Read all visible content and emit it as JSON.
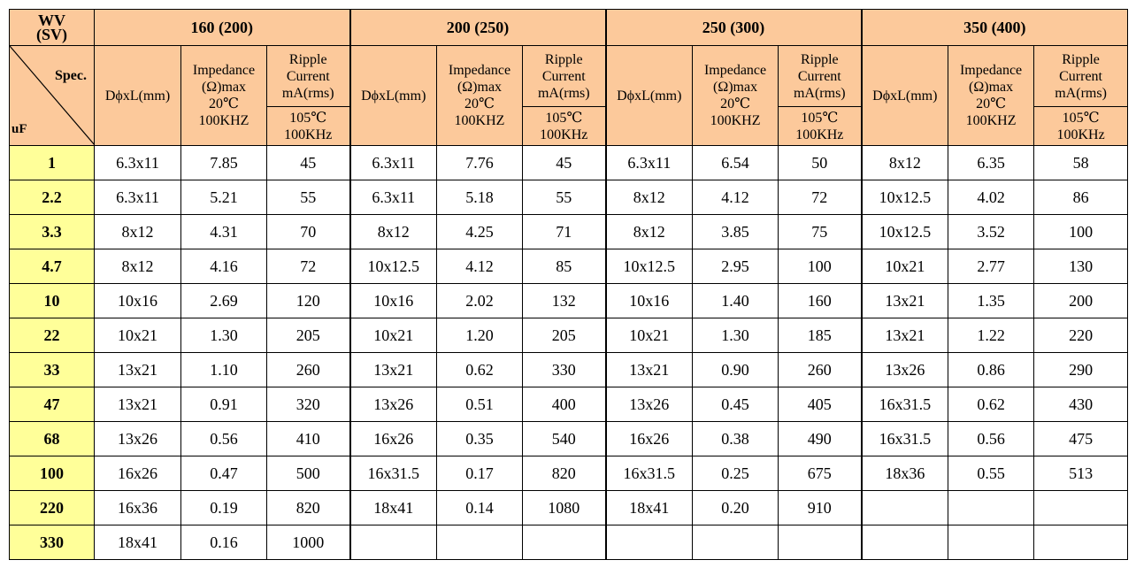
{
  "header": {
    "wv": "WV",
    "sv": "(SV)",
    "spec": "Spec.",
    "uf": "uF",
    "voltage_groups": [
      "160 (200)",
      "200 (250)",
      "250 (300)",
      "350 (400)"
    ],
    "dim_label": "DϕxL(mm)",
    "imp_line1": "Impedance",
    "imp_line2": "(Ω)max",
    "imp_line3": "20℃",
    "imp_line4": "100KHZ",
    "rip_line1": "Ripple",
    "rip_line2": "Current",
    "rip_line3": "mA(rms)",
    "rip_line4": "105℃",
    "rip_line5": "100KHz"
  },
  "rows": [
    {
      "uf": "1",
      "cells": [
        "6.3x11",
        "7.85",
        "45",
        "6.3x11",
        "7.76",
        "45",
        "6.3x11",
        "6.54",
        "50",
        "8x12",
        "6.35",
        "58"
      ]
    },
    {
      "uf": "2.2",
      "cells": [
        "6.3x11",
        "5.21",
        "55",
        "6.3x11",
        "5.18",
        "55",
        "8x12",
        "4.12",
        "72",
        "10x12.5",
        "4.02",
        "86"
      ]
    },
    {
      "uf": "3.3",
      "cells": [
        "8x12",
        "4.31",
        "70",
        "8x12",
        "4.25",
        "71",
        "8x12",
        "3.85",
        "75",
        "10x12.5",
        "3.52",
        "100"
      ]
    },
    {
      "uf": "4.7",
      "cells": [
        "8x12",
        "4.16",
        "72",
        "10x12.5",
        "4.12",
        "85",
        "10x12.5",
        "2.95",
        "100",
        "10x21",
        "2.77",
        "130"
      ]
    },
    {
      "uf": "10",
      "cells": [
        "10x16",
        "2.69",
        "120",
        "10x16",
        "2.02",
        "132",
        "10x16",
        "1.40",
        "160",
        "13x21",
        "1.35",
        "200"
      ]
    },
    {
      "uf": "22",
      "cells": [
        "10x21",
        "1.30",
        "205",
        "10x21",
        "1.20",
        "205",
        "10x21",
        "1.30",
        "185",
        "13x21",
        "1.22",
        "220"
      ]
    },
    {
      "uf": "33",
      "cells": [
        "13x21",
        "1.10",
        "260",
        "13x21",
        "0.62",
        "330",
        "13x21",
        "0.90",
        "260",
        "13x26",
        "0.86",
        "290"
      ]
    },
    {
      "uf": "47",
      "cells": [
        "13x21",
        "0.91",
        "320",
        "13x26",
        "0.51",
        "400",
        "13x26",
        "0.45",
        "405",
        "16x31.5",
        "0.62",
        "430"
      ]
    },
    {
      "uf": "68",
      "cells": [
        "13x26",
        "0.56",
        "410",
        "16x26",
        "0.35",
        "540",
        "16x26",
        "0.38",
        "490",
        "16x31.5",
        "0.56",
        "475"
      ]
    },
    {
      "uf": "100",
      "cells": [
        "16x26",
        "0.47",
        "500",
        "16x31.5",
        "0.17",
        "820",
        "16x31.5",
        "0.25",
        "675",
        "18x36",
        "0.55",
        "513"
      ]
    },
    {
      "uf": "220",
      "cells": [
        "16x36",
        "0.19",
        "820",
        "18x41",
        "0.14",
        "1080",
        "18x41",
        "0.20",
        "910",
        "",
        "",
        ""
      ]
    },
    {
      "uf": "330",
      "cells": [
        "18x41",
        "0.16",
        "1000",
        "",
        "",
        "",
        "",
        "",
        "",
        "",
        "",
        ""
      ]
    }
  ],
  "colors": {
    "header_bg": "#fcc99b",
    "uf_bg": "#ffff99"
  }
}
